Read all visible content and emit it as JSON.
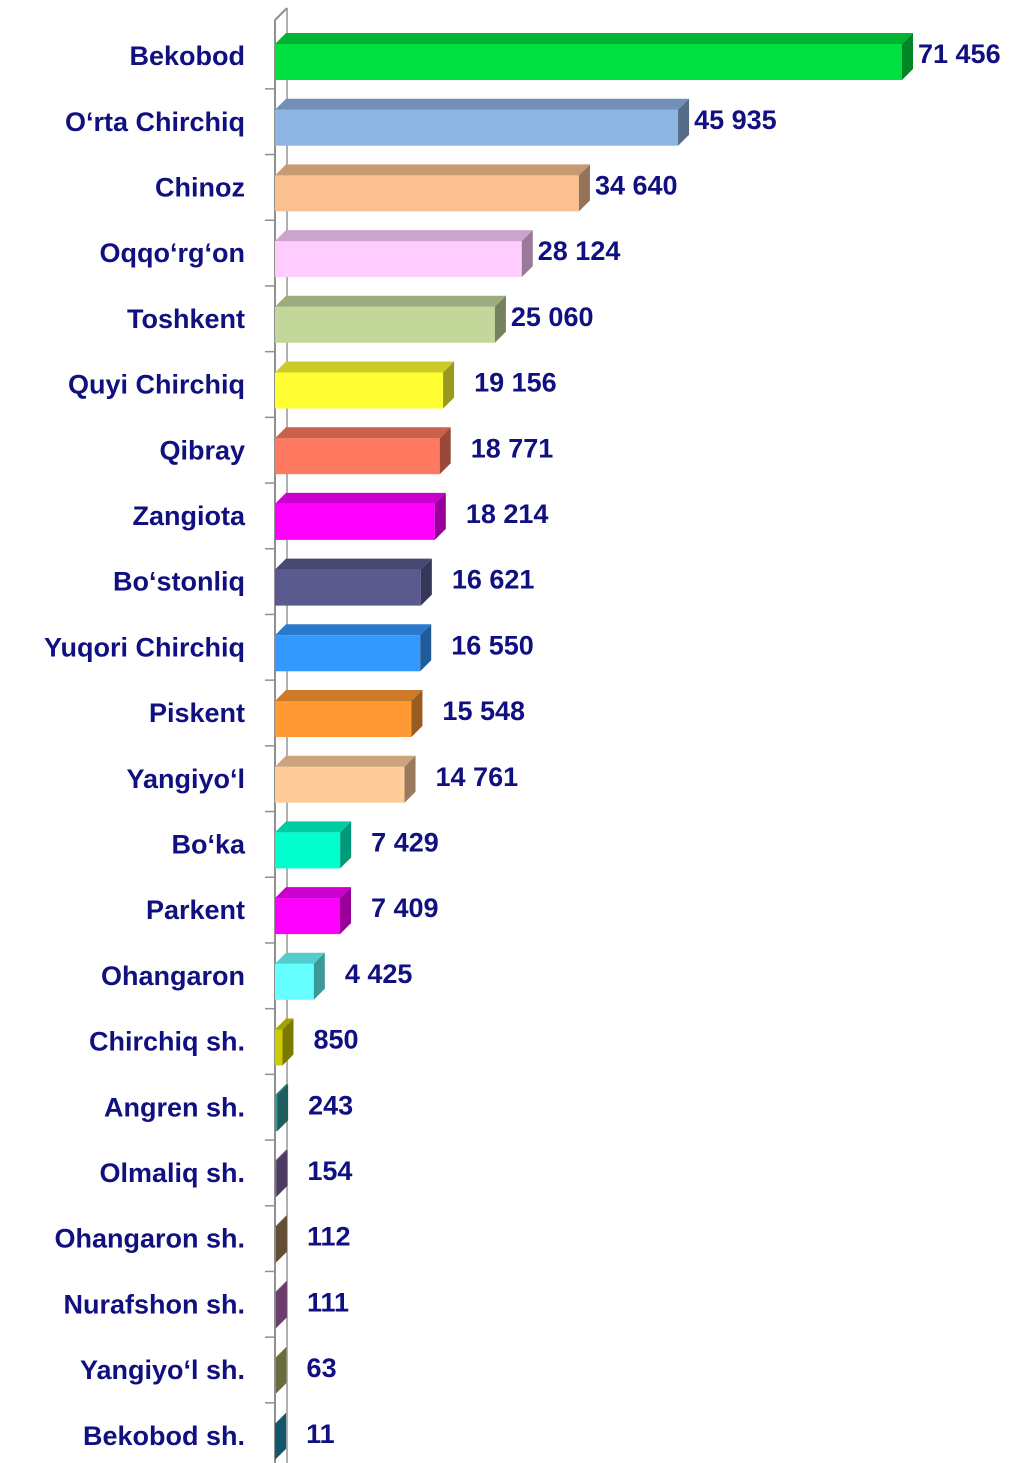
{
  "chart_data": {
    "type": "bar",
    "orientation": "horizontal",
    "categories": [
      "Bekobod",
      "O‘rta Chirchiq",
      "Chinoz",
      "Oqqo‘rg‘on",
      "Toshkent",
      "Quyi Chirchiq",
      "Qibray",
      "Zangiota",
      "Bo‘stonliq",
      "Yuqori Chirchiq",
      "Piskent",
      "Yangiyo‘l",
      "Bo‘ka",
      "Parkent",
      "Ohangaron",
      "Chirchiq sh.",
      "Angren sh.",
      "Olmaliq sh.",
      "Ohangaron sh.",
      "Nurafshon sh.",
      "Yangiyo‘l sh.",
      "Bekobod sh."
    ],
    "values": [
      71456,
      45935,
      34640,
      28124,
      25060,
      19156,
      18771,
      18214,
      16621,
      16550,
      15548,
      14761,
      7429,
      7409,
      4425,
      850,
      243,
      154,
      112,
      111,
      63,
      11
    ],
    "value_labels": [
      "71 456",
      "45 935",
      "34 640",
      "28 124",
      "25 060",
      "19 156",
      "18 771",
      "18 214",
      "16 621",
      "16 550",
      "15 548",
      "14 761",
      "7 429",
      "7 409",
      "4 425",
      "850",
      "243",
      "154",
      "112",
      "111",
      "63",
      "11"
    ],
    "colors": [
      "#00e040",
      "#8eb4e3",
      "#fac090",
      "#ffccff",
      "#c4d79b",
      "#ffff33",
      "#ff7860",
      "#ff00ff",
      "#5a5a8f",
      "#3399ff",
      "#ff9933",
      "#ffcc99",
      "#00ffcc",
      "#ff00ff",
      "#66ffff",
      "#cccc00",
      "#339999",
      "#8064a2",
      "#a5835a",
      "#b366b3",
      "#b3b36b",
      "#1f8fb3"
    ],
    "grid": false
  }
}
